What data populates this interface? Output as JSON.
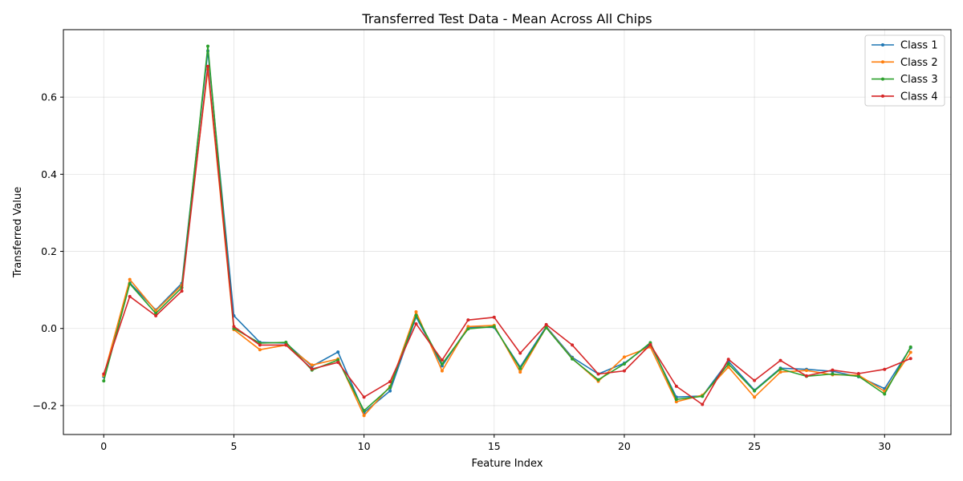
{
  "chart_data": {
    "type": "line",
    "title": "Transferred Test Data - Mean Across All Chips",
    "xlabel": "Feature Index",
    "ylabel": "Transferred Value",
    "xlim": [
      -1.55,
      32.55
    ],
    "ylim": [
      -0.275,
      0.775
    ],
    "xticks": [
      0,
      5,
      10,
      15,
      20,
      25,
      30
    ],
    "yticks": [
      -0.2,
      0.0,
      0.2,
      0.4,
      0.6
    ],
    "ytick_labels": [
      "−0.2",
      "0.0",
      "0.2",
      "0.4",
      "0.6"
    ],
    "grid": true,
    "legend_position": "top-right",
    "x": [
      0,
      1,
      2,
      3,
      4,
      5,
      6,
      7,
      8,
      9,
      10,
      11,
      12,
      13,
      14,
      15,
      16,
      17,
      18,
      19,
      20,
      21,
      22,
      23,
      24,
      25,
      26,
      27,
      28,
      29,
      30,
      31
    ],
    "series": [
      {
        "name": "Class 1",
        "color": "#1f77b4",
        "values": [
          -0.125,
          0.118,
          0.048,
          0.117,
          0.72,
          0.033,
          -0.036,
          -0.038,
          -0.098,
          -0.061,
          -0.218,
          -0.162,
          0.03,
          -0.097,
          0.003,
          0.003,
          -0.1,
          0.005,
          -0.075,
          -0.118,
          -0.09,
          -0.04,
          -0.178,
          -0.175,
          -0.085,
          -0.16,
          -0.103,
          -0.106,
          -0.111,
          -0.125,
          -0.156,
          -0.05
        ]
      },
      {
        "name": "Class 2",
        "color": "#ff7f0e",
        "values": [
          -0.122,
          0.127,
          0.046,
          0.112,
          0.672,
          -0.003,
          -0.055,
          -0.043,
          -0.095,
          -0.079,
          -0.226,
          -0.15,
          0.043,
          -0.11,
          0.005,
          0.008,
          -0.113,
          0.003,
          -0.078,
          -0.137,
          -0.074,
          -0.048,
          -0.19,
          -0.173,
          -0.1,
          -0.178,
          -0.113,
          -0.109,
          -0.12,
          -0.121,
          -0.163,
          -0.062
        ]
      },
      {
        "name": "Class 3",
        "color": "#2ca02c",
        "values": [
          -0.136,
          0.116,
          0.039,
          0.106,
          0.732,
          0.0,
          -0.038,
          -0.036,
          -0.108,
          -0.082,
          -0.213,
          -0.153,
          0.034,
          -0.092,
          -0.001,
          0.005,
          -0.104,
          0.002,
          -0.079,
          -0.133,
          -0.092,
          -0.037,
          -0.184,
          -0.176,
          -0.092,
          -0.162,
          -0.105,
          -0.124,
          -0.118,
          -0.124,
          -0.17,
          -0.048
        ]
      },
      {
        "name": "Class 4",
        "color": "#d62728",
        "values": [
          -0.118,
          0.083,
          0.033,
          0.097,
          0.68,
          0.005,
          -0.043,
          -0.043,
          -0.105,
          -0.088,
          -0.178,
          -0.138,
          0.012,
          -0.082,
          0.022,
          0.029,
          -0.064,
          0.01,
          -0.043,
          -0.118,
          -0.11,
          -0.042,
          -0.15,
          -0.197,
          -0.08,
          -0.135,
          -0.083,
          -0.123,
          -0.108,
          -0.117,
          -0.106,
          -0.078
        ]
      }
    ]
  }
}
